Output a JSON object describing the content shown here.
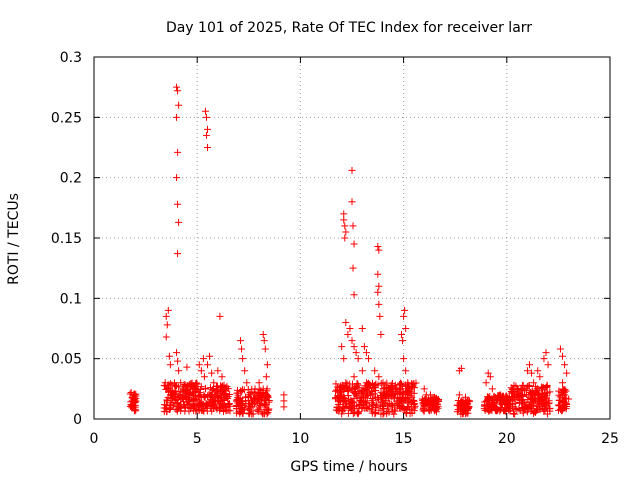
{
  "chart_data": {
    "type": "scatter",
    "title": "Day 101 of 2025, Rate Of TEC Index for receiver larr",
    "xlabel": "GPS time / hours",
    "ylabel": "ROTI / TECUs",
    "xlim": [
      0,
      25
    ],
    "ylim": [
      0,
      0.3
    ],
    "xticks": [
      "0",
      "5",
      "10",
      "15",
      "20",
      "25"
    ],
    "yticks": [
      "0",
      "0.05",
      "0.1",
      "0.15",
      "0.2",
      "0.25",
      "0.3"
    ],
    "grid": true,
    "marker": "+",
    "color": "#ff0000",
    "series": [
      {
        "points": [
          [
            1.8,
            0.022
          ],
          [
            1.85,
            0.015
          ],
          [
            1.9,
            0.01
          ],
          [
            1.95,
            0.018
          ],
          [
            2.0,
            0.008
          ],
          [
            1.8,
            0.012
          ],
          [
            1.9,
            0.02
          ],
          [
            2.0,
            0.014
          ],
          [
            3.5,
            0.085
          ],
          [
            3.55,
            0.078
          ],
          [
            3.6,
            0.09
          ],
          [
            3.65,
            0.052
          ],
          [
            3.7,
            0.045
          ],
          [
            3.5,
            0.068
          ],
          [
            3.45,
            0.03
          ],
          [
            3.6,
            0.025
          ],
          [
            3.55,
            0.015
          ],
          [
            3.7,
            0.02
          ],
          [
            3.8,
            0.018
          ],
          [
            3.9,
            0.03
          ],
          [
            4.0,
            0.275
          ],
          [
            4.05,
            0.272
          ],
          [
            4.1,
            0.26
          ],
          [
            4.0,
            0.25
          ],
          [
            4.05,
            0.221
          ],
          [
            4.0,
            0.2
          ],
          [
            4.05,
            0.178
          ],
          [
            4.1,
            0.163
          ],
          [
            4.05,
            0.137
          ],
          [
            4.0,
            0.055
          ],
          [
            4.05,
            0.048
          ],
          [
            4.1,
            0.04
          ],
          [
            4.2,
            0.03
          ],
          [
            4.3,
            0.025
          ],
          [
            4.5,
            0.043
          ],
          [
            4.4,
            0.02
          ],
          [
            4.6,
            0.022
          ],
          [
            4.8,
            0.015
          ],
          [
            4.9,
            0.028
          ],
          [
            4.2,
            0.012
          ],
          [
            4.7,
            0.01
          ],
          [
            5.1,
            0.045
          ],
          [
            5.2,
            0.04
          ],
          [
            5.3,
            0.05
          ],
          [
            5.35,
            0.035
          ],
          [
            5.2,
            0.018
          ],
          [
            5.3,
            0.012
          ],
          [
            5.4,
            0.255
          ],
          [
            5.45,
            0.25
          ],
          [
            5.5,
            0.24
          ],
          [
            5.45,
            0.235
          ],
          [
            5.5,
            0.225
          ],
          [
            5.5,
            0.045
          ],
          [
            5.6,
            0.052
          ],
          [
            5.7,
            0.038
          ],
          [
            5.8,
            0.03
          ],
          [
            5.6,
            0.02
          ],
          [
            5.9,
            0.015
          ],
          [
            6.1,
            0.085
          ],
          [
            6.0,
            0.04
          ],
          [
            6.2,
            0.035
          ],
          [
            6.3,
            0.028
          ],
          [
            6.4,
            0.02
          ],
          [
            6.5,
            0.012
          ],
          [
            6.3,
            0.01
          ],
          [
            7.1,
            0.065
          ],
          [
            7.15,
            0.058
          ],
          [
            7.2,
            0.05
          ],
          [
            7.3,
            0.04
          ],
          [
            7.4,
            0.03
          ],
          [
            7.6,
            0.02
          ],
          [
            7.8,
            0.025
          ],
          [
            7.9,
            0.015
          ],
          [
            8.0,
            0.03
          ],
          [
            8.2,
            0.07
          ],
          [
            8.25,
            0.065
          ],
          [
            8.3,
            0.058
          ],
          [
            8.4,
            0.045
          ],
          [
            8.35,
            0.035
          ],
          [
            8.2,
            0.025
          ],
          [
            8.3,
            0.012
          ],
          [
            8.4,
            0.008
          ],
          [
            9.2,
            0.02
          ],
          [
            9.2,
            0.015
          ],
          [
            9.2,
            0.01
          ],
          [
            11.8,
            0.018
          ],
          [
            11.85,
            0.012
          ],
          [
            11.9,
            0.008
          ],
          [
            12.1,
            0.165
          ],
          [
            12.15,
            0.16
          ],
          [
            12.2,
            0.155
          ],
          [
            12.1,
            0.17
          ],
          [
            12.15,
            0.15
          ],
          [
            12.5,
            0.206
          ],
          [
            12.5,
            0.18
          ],
          [
            12.55,
            0.16
          ],
          [
            12.6,
            0.145
          ],
          [
            12.55,
            0.125
          ],
          [
            12.6,
            0.103
          ],
          [
            12.0,
            0.06
          ],
          [
            12.1,
            0.05
          ],
          [
            12.2,
            0.08
          ],
          [
            12.3,
            0.07
          ],
          [
            12.4,
            0.075
          ],
          [
            12.5,
            0.065
          ],
          [
            12.6,
            0.06
          ],
          [
            12.7,
            0.055
          ],
          [
            12.8,
            0.05
          ],
          [
            12.2,
            0.03
          ],
          [
            12.4,
            0.025
          ],
          [
            12.6,
            0.035
          ],
          [
            12.8,
            0.028
          ],
          [
            13.0,
            0.04
          ],
          [
            13.2,
            0.03
          ],
          [
            13.4,
            0.02
          ],
          [
            13.0,
            0.075
          ],
          [
            13.1,
            0.06
          ],
          [
            13.2,
            0.055
          ],
          [
            13.3,
            0.05
          ],
          [
            13.75,
            0.143
          ],
          [
            13.8,
            0.14
          ],
          [
            13.75,
            0.12
          ],
          [
            13.8,
            0.11
          ],
          [
            13.75,
            0.105
          ],
          [
            13.8,
            0.095
          ],
          [
            13.85,
            0.085
          ],
          [
            13.9,
            0.07
          ],
          [
            13.6,
            0.04
          ],
          [
            13.8,
            0.035
          ],
          [
            14.0,
            0.03
          ],
          [
            14.2,
            0.025
          ],
          [
            14.4,
            0.02
          ],
          [
            14.6,
            0.028
          ],
          [
            14.8,
            0.015
          ],
          [
            14.9,
            0.07
          ],
          [
            15.0,
            0.085
          ],
          [
            15.05,
            0.09
          ],
          [
            15.1,
            0.075
          ],
          [
            14.95,
            0.065
          ],
          [
            15.0,
            0.05
          ],
          [
            15.1,
            0.04
          ],
          [
            15.2,
            0.03
          ],
          [
            15.3,
            0.025
          ],
          [
            15.4,
            0.018
          ],
          [
            15.5,
            0.012
          ],
          [
            15.3,
            0.008
          ],
          [
            16.0,
            0.025
          ],
          [
            16.1,
            0.02
          ],
          [
            16.2,
            0.015
          ],
          [
            16.3,
            0.02
          ],
          [
            16.4,
            0.01
          ],
          [
            16.5,
            0.018
          ],
          [
            16.6,
            0.012
          ],
          [
            17.7,
            0.04
          ],
          [
            17.8,
            0.042
          ],
          [
            17.7,
            0.02
          ],
          [
            17.8,
            0.015
          ],
          [
            17.9,
            0.01
          ],
          [
            18.0,
            0.018
          ],
          [
            18.1,
            0.008
          ],
          [
            19.0,
            0.03
          ],
          [
            19.1,
            0.038
          ],
          [
            19.2,
            0.035
          ],
          [
            19.3,
            0.025
          ],
          [
            19.5,
            0.015
          ],
          [
            19.7,
            0.02
          ],
          [
            19.9,
            0.012
          ],
          [
            20.0,
            0.018
          ],
          [
            20.3,
            0.025
          ],
          [
            20.5,
            0.02
          ],
          [
            20.7,
            0.015
          ],
          [
            20.9,
            0.01
          ],
          [
            20.8,
            0.005
          ],
          [
            21.0,
            0.04
          ],
          [
            21.1,
            0.045
          ],
          [
            21.2,
            0.038
          ],
          [
            21.3,
            0.03
          ],
          [
            21.5,
            0.04
          ],
          [
            21.6,
            0.035
          ],
          [
            21.7,
            0.025
          ],
          [
            21.8,
            0.05
          ],
          [
            21.9,
            0.055
          ],
          [
            22.0,
            0.045
          ],
          [
            21.4,
            0.015
          ],
          [
            21.6,
            0.01
          ],
          [
            22.6,
            0.058
          ],
          [
            22.7,
            0.052
          ],
          [
            22.8,
            0.045
          ],
          [
            22.9,
            0.038
          ],
          [
            22.7,
            0.03
          ],
          [
            22.8,
            0.02
          ],
          [
            22.9,
            0.012
          ],
          [
            22.6,
            0.008
          ],
          [
            22.75,
            0.015
          ]
        ]
      }
    ]
  }
}
